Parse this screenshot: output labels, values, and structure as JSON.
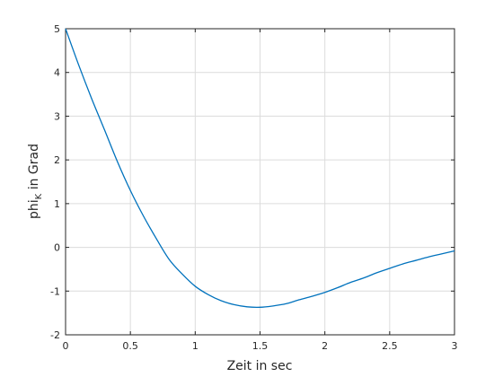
{
  "chart_data": {
    "type": "line",
    "title": "",
    "xlabel": "Zeit in sec",
    "ylabel": {
      "main": "phi",
      "subscript": "K",
      "suffix": " in Grad"
    },
    "xlim": [
      0,
      3
    ],
    "ylim": [
      -2,
      5
    ],
    "xticks": [
      0,
      0.5,
      1,
      1.5,
      2,
      2.5,
      3
    ],
    "xtick_labels": [
      "0",
      "0.5",
      "1",
      "1.5",
      "2",
      "2.5",
      "3"
    ],
    "yticks": [
      -2,
      -1,
      0,
      1,
      2,
      3,
      4,
      5
    ],
    "ytick_labels": [
      "-2",
      "-1",
      "0",
      "1",
      "2",
      "3",
      "4",
      "5"
    ],
    "grid": true,
    "legend": "none",
    "series": [
      {
        "color": "#0072bd",
        "x": [
          0,
          0.1,
          0.2,
          0.3,
          0.4,
          0.5,
          0.6,
          0.7,
          0.8,
          0.9,
          1.0,
          1.1,
          1.2,
          1.3,
          1.4,
          1.5,
          1.6,
          1.7,
          1.8,
          1.9,
          2.0,
          2.1,
          2.2,
          2.3,
          2.4,
          2.5,
          2.6,
          2.7,
          2.8,
          2.9,
          3.0
        ],
        "y": [
          5.0,
          4.18,
          3.41,
          2.69,
          1.96,
          1.3,
          0.72,
          0.2,
          -0.28,
          -0.61,
          -0.89,
          -1.08,
          -1.22,
          -1.31,
          -1.36,
          -1.37,
          -1.34,
          -1.29,
          -1.2,
          -1.12,
          -1.03,
          -0.92,
          -0.8,
          -0.7,
          -0.58,
          -0.48,
          -0.38,
          -0.3,
          -0.22,
          -0.15,
          -0.08
        ]
      }
    ]
  }
}
